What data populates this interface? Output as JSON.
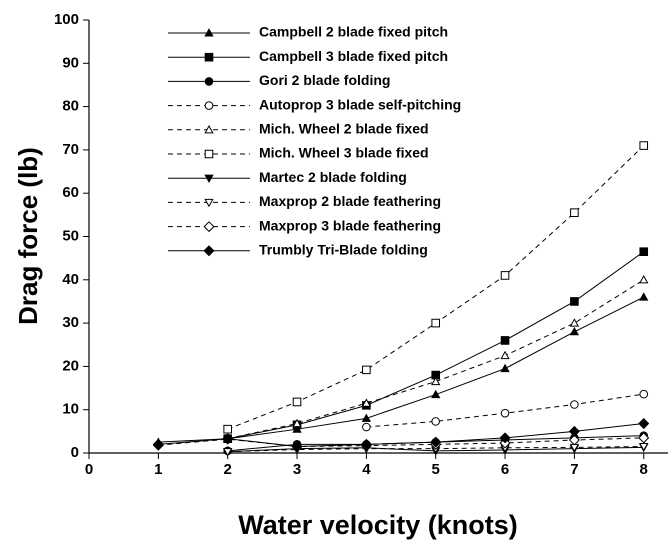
{
  "chart_data": {
    "type": "line",
    "xlabel": "Water velocity (knots)",
    "ylabel": "Drag force (lb)",
    "x": [
      1,
      2,
      3,
      4,
      5,
      6,
      7,
      8
    ],
    "xlim": [
      0,
      8.35
    ],
    "xticks": [
      0,
      1,
      2,
      3,
      4,
      5,
      6,
      7,
      8
    ],
    "ylim": [
      0,
      100
    ],
    "yticks": [
      0,
      10,
      20,
      30,
      40,
      50,
      60,
      70,
      80,
      90,
      100
    ],
    "series": [
      {
        "name": "Campbell 2 blade fixed pitch",
        "color": "#000",
        "dashed": false,
        "marker": "triangle",
        "filled": true,
        "values": [
          2.5,
          3.3,
          5.5,
          8,
          13.5,
          19.5,
          28,
          36
        ]
      },
      {
        "name": "Campbell 3 blade fixed pitch",
        "color": "#000",
        "dashed": false,
        "marker": "square",
        "filled": true,
        "values": [
          null,
          3.3,
          6.5,
          11,
          18,
          26,
          35,
          46.5
        ]
      },
      {
        "name": "Gori 2 blade folding",
        "color": "#000",
        "dashed": false,
        "marker": "circle",
        "filled": true,
        "values": [
          null,
          0.5,
          2,
          2,
          2.5,
          3,
          3.5,
          4
        ]
      },
      {
        "name": "Autoprop 3 blade self-pitching",
        "color": "#000",
        "dashed": true,
        "marker": "circle",
        "filled": false,
        "values": [
          null,
          null,
          null,
          6,
          7.3,
          9.2,
          11.2,
          13.6
        ]
      },
      {
        "name": "Mich. Wheel 2 blade fixed",
        "color": "#000",
        "dashed": true,
        "marker": "triangle",
        "filled": false,
        "values": [
          null,
          3.3,
          6.8,
          11.5,
          16.5,
          22.5,
          30,
          40
        ]
      },
      {
        "name": "Mich. Wheel 3 blade fixed",
        "color": "#000",
        "dashed": true,
        "marker": "square",
        "filled": false,
        "values": [
          null,
          5.5,
          11.8,
          19.2,
          30,
          41,
          55.5,
          71
        ]
      },
      {
        "name": "Martec 2 blade folding",
        "color": "#000",
        "dashed": false,
        "marker": "down",
        "filled": true,
        "values": [
          null,
          0.3,
          1,
          1.2,
          0.5,
          0.7,
          1,
          1.3
        ]
      },
      {
        "name": "Maxprop 2 blade feathering",
        "color": "#000",
        "dashed": true,
        "marker": "down",
        "filled": false,
        "values": [
          null,
          0.3,
          0.8,
          1,
          1,
          1.2,
          1.3,
          1.5
        ]
      },
      {
        "name": "Maxprop 3 blade feathering",
        "color": "#000",
        "dashed": true,
        "marker": "diamond",
        "filled": false,
        "values": [
          1.8,
          3.2,
          1.5,
          1.7,
          2,
          2.3,
          3,
          3.5
        ]
      },
      {
        "name": "Trumbly Tri-Blade folding",
        "color": "#000",
        "dashed": false,
        "marker": "diamond",
        "filled": true,
        "values": [
          2,
          3.3,
          1.5,
          2,
          2.5,
          3.5,
          5,
          6.8
        ]
      }
    ]
  }
}
